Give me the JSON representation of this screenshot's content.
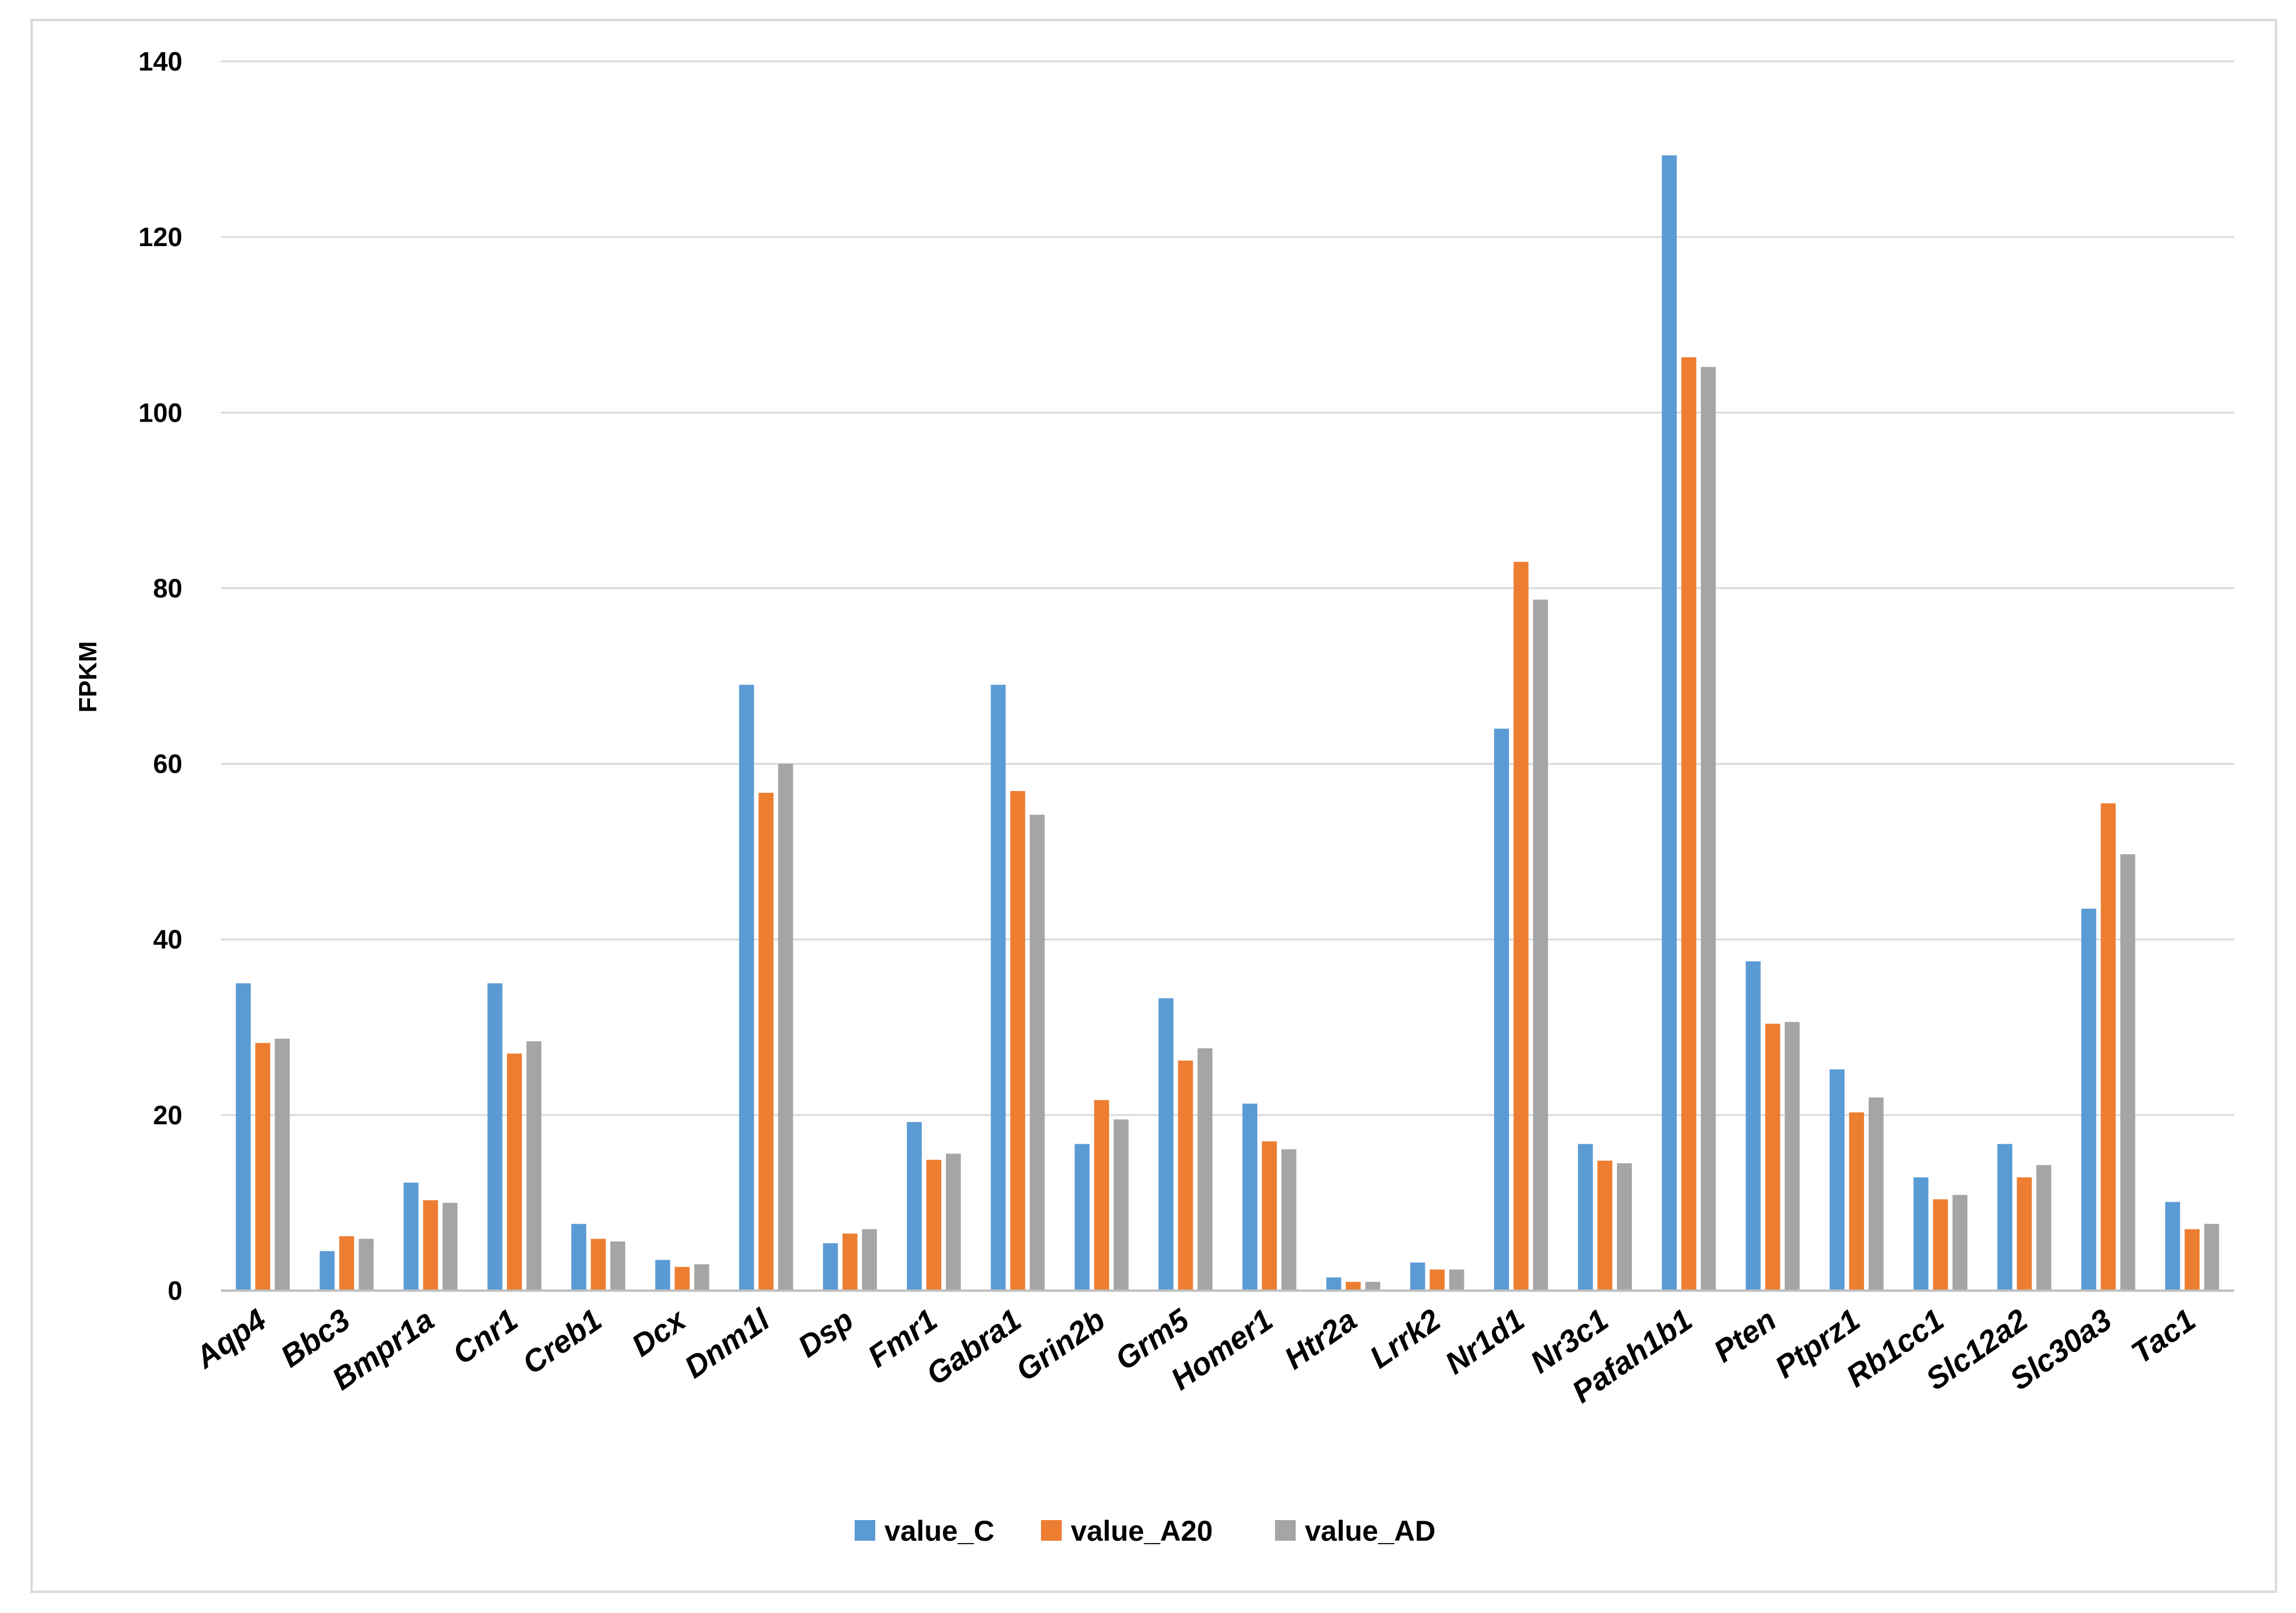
{
  "chart_data": {
    "type": "bar",
    "title": "",
    "xlabel": "",
    "ylabel": "FPKM",
    "ylim": [
      0,
      140
    ],
    "yticks": [
      0,
      20,
      40,
      60,
      80,
      100,
      120,
      140
    ],
    "grid": true,
    "legend_position": "bottom",
    "categories": [
      "Aqp4",
      "Bbc3",
      "Bmpr1a",
      "Cnr1",
      "Creb1",
      "Dcx",
      "Dnm1l",
      "Dsp",
      "Fmr1",
      "Gabra1",
      "Grin2b",
      "Grm5",
      "Homer1",
      "Htr2a",
      "Lrrk2",
      "Nr1d1",
      "Nr3c1",
      "Pafah1b1",
      "Pten",
      "Ptprz1",
      "Rb1cc1",
      "Slc12a2",
      "Slc30a3",
      "Tac1"
    ],
    "series": [
      {
        "name": "value_C",
        "color": "#5b9bd5",
        "values": [
          35.0,
          4.5,
          12.3,
          35.0,
          7.6,
          3.5,
          69.0,
          5.4,
          19.2,
          69.0,
          16.7,
          33.3,
          21.3,
          1.5,
          3.2,
          64.0,
          16.7,
          129.3,
          37.5,
          25.2,
          12.9,
          16.7,
          43.5,
          10.1
        ]
      },
      {
        "name": "value_A20",
        "color": "#ed7d31",
        "values": [
          28.2,
          6.2,
          10.3,
          27.0,
          5.9,
          2.7,
          56.7,
          6.5,
          14.9,
          56.9,
          21.7,
          26.2,
          17.0,
          1.0,
          2.4,
          83.0,
          14.8,
          106.3,
          30.4,
          20.3,
          10.4,
          12.9,
          55.5,
          7.0
        ]
      },
      {
        "name": "value_AD",
        "color": "#a5a5a5",
        "values": [
          28.7,
          5.9,
          10.0,
          28.4,
          5.6,
          3.0,
          60.0,
          7.0,
          15.6,
          54.2,
          19.5,
          27.6,
          16.1,
          1.0,
          2.4,
          78.7,
          14.5,
          105.2,
          30.6,
          22.0,
          10.9,
          14.3,
          49.7,
          7.6
        ]
      }
    ]
  }
}
